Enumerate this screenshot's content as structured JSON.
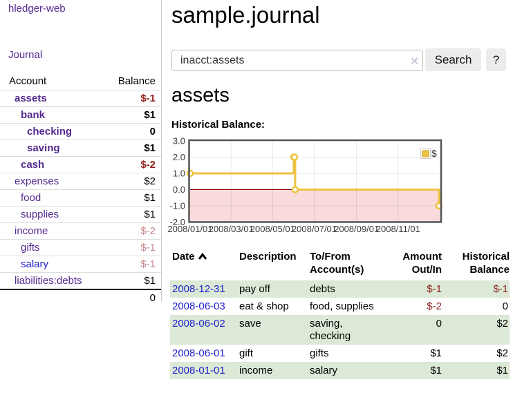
{
  "app": {
    "brand": "hledger-web",
    "nav_journal": "Journal"
  },
  "sidebar": {
    "col_account": "Account",
    "col_balance": "Balance",
    "rows": [
      {
        "account": "assets",
        "balance": "$-1"
      },
      {
        "account": "bank",
        "balance": "$1"
      },
      {
        "account": "checking",
        "balance": "0"
      },
      {
        "account": "saving",
        "balance": "$1"
      },
      {
        "account": "cash",
        "balance": "$-2"
      },
      {
        "account": "expenses",
        "balance": "$2"
      },
      {
        "account": "food",
        "balance": "$1"
      },
      {
        "account": "supplies",
        "balance": "$1"
      },
      {
        "account": "income",
        "balance": "$-2"
      },
      {
        "account": "gifts",
        "balance": "$-1"
      },
      {
        "account": "salary",
        "balance": "$-1"
      },
      {
        "account": "liabilities:debts",
        "balance": "$1"
      }
    ],
    "total": "0"
  },
  "header": {
    "title": "sample.journal"
  },
  "search": {
    "value": "inacct:assets",
    "clear_icon": "✕",
    "button_label": "Search",
    "help_label": "?"
  },
  "account_page": {
    "heading": "assets",
    "chart_label": "Historical Balance:"
  },
  "chart_data": {
    "type": "line",
    "title": "Historical Balance",
    "step": true,
    "series": [
      {
        "name": "$",
        "color": "#edc240",
        "points": [
          [
            "2008/01/01",
            1
          ],
          [
            "2008/06/01",
            2
          ],
          [
            "2008/06/02",
            2
          ],
          [
            "2008/06/03",
            0
          ],
          [
            "2008/12/31",
            -1
          ]
        ]
      }
    ],
    "ylim": [
      -2.0,
      3.0
    ],
    "yticks": [
      "3.0",
      "2.0",
      "1.0",
      "0.0",
      "-1.0",
      "-2.0"
    ],
    "xticks": [
      "2008/01/01",
      "2008/03/01",
      "2008/05/01",
      "2008/07/01",
      "2008/09/01",
      "2008/11/01"
    ],
    "legend_position": "top-right",
    "grid": true,
    "negative_fill": "#f9dbdb",
    "zero_line_color": "#8b0000",
    "border_color": "#545454"
  },
  "register": {
    "columns": {
      "date": "Date",
      "description": "Description",
      "account": "To/From Account(s)",
      "amount": "Amount Out/In",
      "balance": "Historical Balance"
    },
    "rows": [
      {
        "date": "2008-12-31",
        "description": "pay off",
        "account": "debts",
        "amount": "$-1",
        "balance": "$-1"
      },
      {
        "date": "2008-06-03",
        "description": "eat & shop",
        "account": "food, supplies",
        "amount": "$-2",
        "balance": "0"
      },
      {
        "date": "2008-06-02",
        "description": "save",
        "account": "saving, checking",
        "amount": "0",
        "balance": "$2"
      },
      {
        "date": "2008-06-01",
        "description": "gift",
        "account": "gifts",
        "amount": "$1",
        "balance": "$2"
      },
      {
        "date": "2008-01-01",
        "description": "income",
        "account": "salary",
        "amount": "$1",
        "balance": "$1"
      }
    ]
  }
}
